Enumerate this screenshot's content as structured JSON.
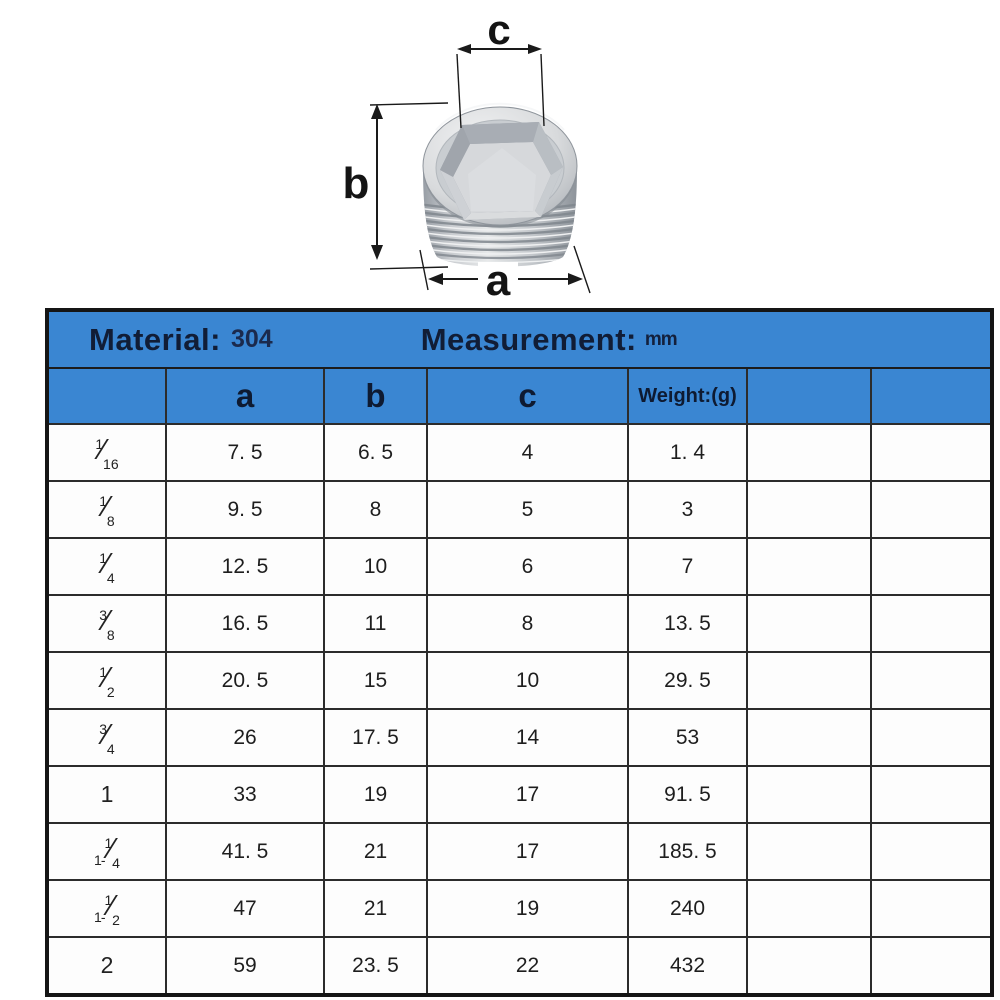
{
  "figure": {
    "description": "Stainless steel hex socket countersunk pipe plug photo with dimension arrows",
    "labels": {
      "a": "a",
      "b": "b",
      "c": "c"
    },
    "colors": {
      "metal_light": "#eff0f1",
      "metal_mid": "#cfd2d5",
      "metal_dark": "#90969d",
      "dimension_line": "#1a1a1a"
    }
  },
  "table": {
    "accent_color": "#3a86d2",
    "header_text_color": "#0e1a31",
    "grid_color": "#2c2c2c",
    "title": {
      "material_label": "Material:",
      "material_value": "304",
      "measurement_label": "Measurement:",
      "measurement_unit": "mm"
    },
    "columns": [
      "",
      "a",
      "b",
      "c",
      "Weight:(g)",
      "",
      ""
    ],
    "rows": [
      {
        "size": {
          "num": "1",
          "den": "16"
        },
        "values": [
          "7. 5",
          "6. 5",
          "4",
          "1. 4"
        ]
      },
      {
        "size": {
          "num": "1",
          "den": "8"
        },
        "values": [
          "9. 5",
          "8",
          "5",
          "3"
        ]
      },
      {
        "size": {
          "num": "1",
          "den": "4"
        },
        "values": [
          "12. 5",
          "10",
          "6",
          "7"
        ]
      },
      {
        "size": {
          "num": "3",
          "den": "8"
        },
        "values": [
          "16. 5",
          "11",
          "8",
          "13. 5"
        ]
      },
      {
        "size": {
          "num": "1",
          "den": "2"
        },
        "values": [
          "20. 5",
          "15",
          "10",
          "29. 5"
        ]
      },
      {
        "size": {
          "num": "3",
          "den": "4"
        },
        "values": [
          "26",
          "17. 5",
          "14",
          "53"
        ]
      },
      {
        "size": {
          "plain": "1"
        },
        "values": [
          "33",
          "19",
          "17",
          "91. 5"
        ]
      },
      {
        "size": {
          "prefix": "1-",
          "num": "1",
          "den": "4"
        },
        "values": [
          "41. 5",
          "21",
          "17",
          "185. 5"
        ]
      },
      {
        "size": {
          "prefix": "1-",
          "num": "1",
          "den": "2"
        },
        "values": [
          "47",
          "21",
          "19",
          "240"
        ]
      },
      {
        "size": {
          "plain": "2"
        },
        "values": [
          "59",
          "23. 5",
          "22",
          "432"
        ]
      }
    ]
  }
}
